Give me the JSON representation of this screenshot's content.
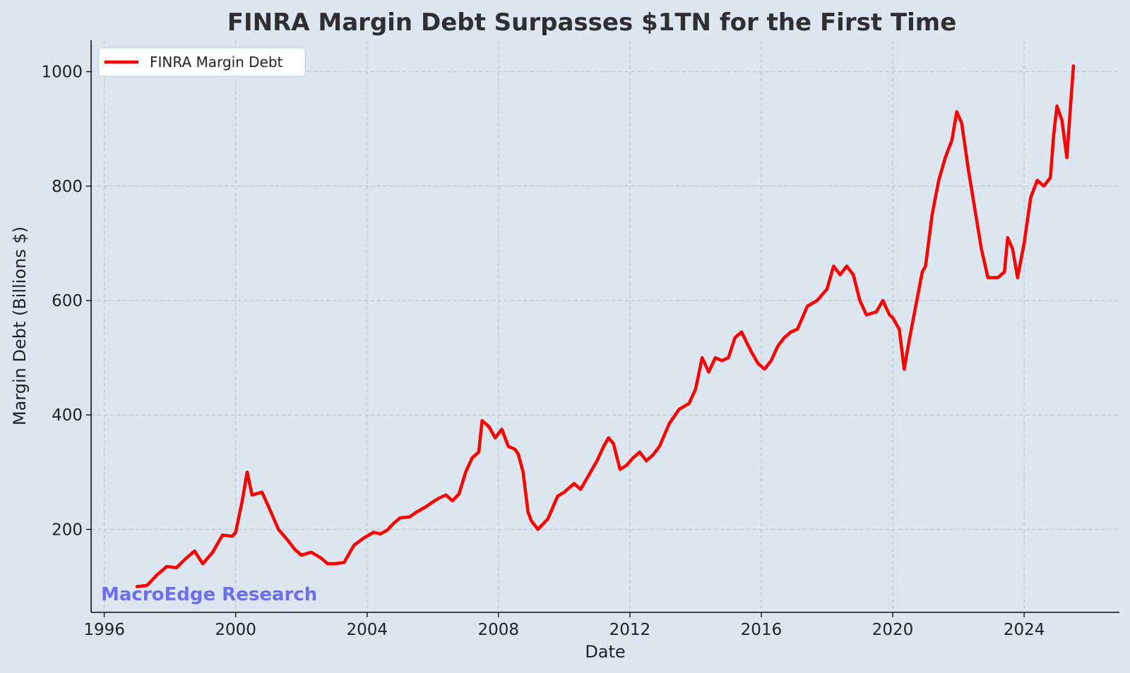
{
  "chart_data": {
    "type": "line",
    "title": "FINRA Margin Debt Surpasses $1TN for the First Time",
    "xlabel": "Date",
    "ylabel": "Margin Debt (Billions $)",
    "xlim": [
      1995.6,
      2026.9
    ],
    "ylim": [
      55,
      1055
    ],
    "x_ticks": [
      1996,
      2000,
      2004,
      2008,
      2012,
      2016,
      2020,
      2024
    ],
    "y_ticks": [
      200,
      400,
      600,
      800,
      1000
    ],
    "grid": true,
    "legend": "top-left",
    "watermark": "MacroEdge Research",
    "series": [
      {
        "name": "FINRA Margin Debt",
        "color": "#ff0000",
        "x": [
          1997.0,
          1997.3,
          1997.6,
          1997.9,
          1998.2,
          1998.5,
          1998.75,
          1999.0,
          1999.3,
          1999.6,
          1999.9,
          2000.0,
          2000.2,
          2000.35,
          2000.5,
          2000.8,
          2001.0,
          2001.3,
          2001.6,
          2001.8,
          2002.0,
          2002.3,
          2002.6,
          2002.8,
          2003.0,
          2003.3,
          2003.6,
          2003.9,
          2004.2,
          2004.4,
          2004.6,
          2004.8,
          2005.0,
          2005.3,
          2005.5,
          2005.8,
          2006.0,
          2006.2,
          2006.4,
          2006.6,
          2006.8,
          2007.0,
          2007.2,
          2007.4,
          2007.5,
          2007.7,
          2007.9,
          2008.1,
          2008.3,
          2008.5,
          2008.6,
          2008.75,
          2008.9,
          2009.0,
          2009.2,
          2009.5,
          2009.8,
          2010.0,
          2010.3,
          2010.5,
          2010.8,
          2011.0,
          2011.2,
          2011.35,
          2011.5,
          2011.7,
          2011.9,
          2012.1,
          2012.3,
          2012.5,
          2012.7,
          2012.9,
          2013.2,
          2013.5,
          2013.8,
          2014.0,
          2014.2,
          2014.4,
          2014.6,
          2014.8,
          2015.0,
          2015.2,
          2015.4,
          2015.7,
          2015.9,
          2016.1,
          2016.3,
          2016.5,
          2016.7,
          2016.9,
          2017.1,
          2017.4,
          2017.7,
          2018.0,
          2018.2,
          2018.4,
          2018.6,
          2018.8,
          2019.0,
          2019.2,
          2019.5,
          2019.7,
          2019.9,
          2020.0,
          2020.2,
          2020.35,
          2020.5,
          2020.7,
          2020.9,
          2021.0,
          2021.2,
          2021.4,
          2021.6,
          2021.8,
          2021.95,
          2022.1,
          2022.3,
          2022.5,
          2022.7,
          2022.9,
          2023.0,
          2023.2,
          2023.4,
          2023.5,
          2023.65,
          2023.8,
          2024.0,
          2024.2,
          2024.4,
          2024.6,
          2024.8,
          2024.9,
          2025.0,
          2025.15,
          2025.3,
          2025.4,
          2025.5
        ],
        "values": [
          100,
          102,
          120,
          135,
          133,
          150,
          162,
          140,
          160,
          190,
          188,
          195,
          250,
          300,
          260,
          265,
          240,
          200,
          180,
          165,
          155,
          160,
          150,
          140,
          140,
          142,
          172,
          185,
          195,
          192,
          198,
          210,
          220,
          222,
          230,
          240,
          248,
          255,
          260,
          250,
          262,
          300,
          325,
          335,
          390,
          380,
          360,
          375,
          345,
          340,
          332,
          300,
          230,
          215,
          200,
          218,
          258,
          265,
          280,
          270,
          300,
          320,
          345,
          360,
          350,
          305,
          312,
          325,
          335,
          320,
          330,
          345,
          385,
          410,
          420,
          445,
          500,
          475,
          500,
          495,
          500,
          535,
          545,
          510,
          490,
          480,
          495,
          520,
          535,
          545,
          550,
          590,
          600,
          620,
          660,
          645,
          660,
          645,
          600,
          575,
          580,
          600,
          575,
          570,
          550,
          480,
          530,
          590,
          650,
          660,
          750,
          810,
          850,
          880,
          930,
          910,
          830,
          760,
          690,
          640,
          640,
          640,
          650,
          710,
          690,
          640,
          700,
          780,
          810,
          800,
          815,
          890,
          940,
          915,
          850,
          930,
          1010
        ]
      }
    ]
  }
}
